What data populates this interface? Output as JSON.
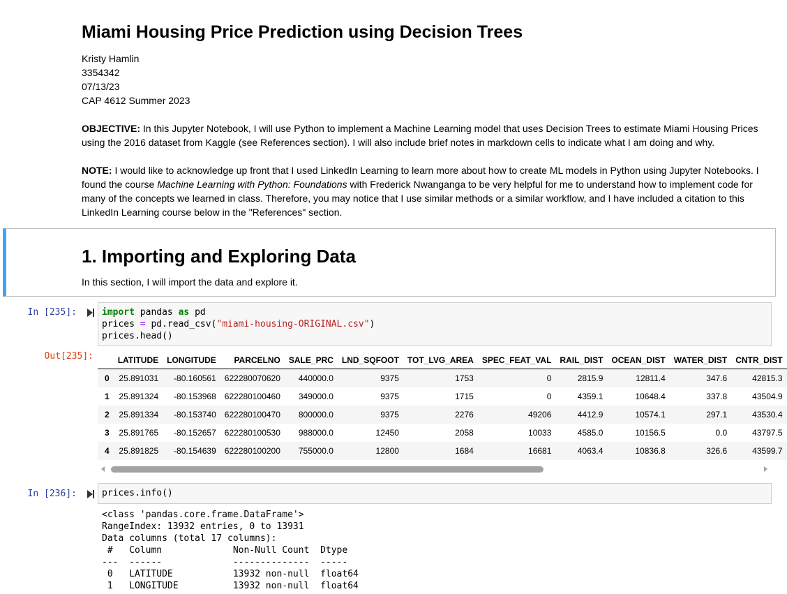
{
  "title": "Miami Housing Price Prediction using Decision Trees",
  "meta": [
    "Kristy Hamlin",
    "3354342",
    "07/13/23",
    "CAP 4612 Summer 2023"
  ],
  "objective": {
    "label": "OBJECTIVE:",
    "text": " In this Jupyter Notebook, I will use Python to implement a Machine Learning model that uses Decision Trees to estimate Miami Housing Prices using the 2016 dataset from Kaggle (see References section). I will also include brief notes in markdown cells to indicate what I am doing and why."
  },
  "note": {
    "label": "NOTE:",
    "text1": " I would like to acknowledge up front that I used LinkedIn Learning to learn more about how to create ML models in Python using Jupyter Notebooks. I found the course ",
    "italic": "Machine Learning with Python: Foundations",
    "text2": " with Frederick Nwanganga to be very helpful for me to understand how to implement code for many of the concepts we learned in class. Therefore, you may notice that I use similar methods or a similar workflow, and I have included a citation to this LinkedIn Learning course below in the \"References\" section."
  },
  "section1": {
    "heading": "1. Importing and Exploring Data",
    "text": "In this section, I will import the data and explore it."
  },
  "cell235": {
    "in_prompt": "In [235]:",
    "out_prompt": "Out[235]:",
    "code": {
      "l1_kw1": "import",
      "l1_a": " pandas ",
      "l1_kw2": "as",
      "l1_b": " pd",
      "l2_a": "prices ",
      "l2_op": "=",
      "l2_b": " pd.read_csv(",
      "l2_str": "\"miami-housing-ORIGINAL.csv\"",
      "l2_c": ")",
      "l3": "prices.head()"
    },
    "table": {
      "columns": [
        "",
        "LATITUDE",
        "LONGITUDE",
        "PARCELNO",
        "SALE_PRC",
        "LND_SQFOOT",
        "TOT_LVG_AREA",
        "SPEC_FEAT_VAL",
        "RAIL_DIST",
        "OCEAN_DIST",
        "WATER_DIST",
        "CNTR_DIST"
      ],
      "rows": [
        [
          "0",
          "25.891031",
          "-80.160561",
          "622280070620",
          "440000.0",
          "9375",
          "1753",
          "0",
          "2815.9",
          "12811.4",
          "347.6",
          "42815.3"
        ],
        [
          "1",
          "25.891324",
          "-80.153968",
          "622280100460",
          "349000.0",
          "9375",
          "1715",
          "0",
          "4359.1",
          "10648.4",
          "337.8",
          "43504.9"
        ],
        [
          "2",
          "25.891334",
          "-80.153740",
          "622280100470",
          "800000.0",
          "9375",
          "2276",
          "49206",
          "4412.9",
          "10574.1",
          "297.1",
          "43530.4"
        ],
        [
          "3",
          "25.891765",
          "-80.152657",
          "622280100530",
          "988000.0",
          "12450",
          "2058",
          "10033",
          "4585.0",
          "10156.5",
          "0.0",
          "43797.5"
        ],
        [
          "4",
          "25.891825",
          "-80.154639",
          "622280100200",
          "755000.0",
          "12800",
          "1684",
          "16681",
          "4063.4",
          "10836.8",
          "326.6",
          "43599.7"
        ]
      ]
    }
  },
  "cell236": {
    "in_prompt": "In [236]:",
    "code": "prices.info()",
    "output": [
      "<class 'pandas.core.frame.DataFrame'>",
      "RangeIndex: 13932 entries, 0 to 13931",
      "Data columns (total 17 columns):",
      " #   Column             Non-Null Count  Dtype  ",
      "---  ------             --------------  -----  ",
      " 0   LATITUDE           13932 non-null  float64",
      " 1   LONGITUDE          13932 non-null  float64"
    ]
  },
  "colors": {
    "selected_border": "#42a5f5",
    "in_prompt": "#303f9f",
    "out_prompt": "#d84315"
  }
}
